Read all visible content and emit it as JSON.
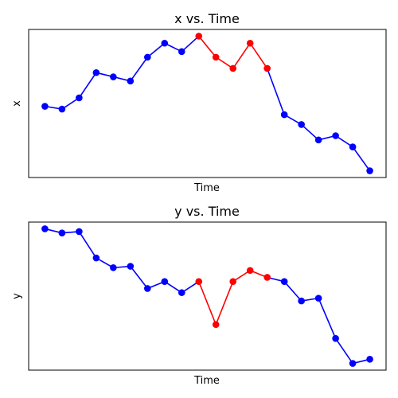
{
  "chart_data": [
    {
      "type": "line",
      "title": "x vs. Time",
      "xlabel": "Time",
      "ylabel": "x",
      "x_ticks_visible": false,
      "y_ticks_visible": false,
      "grid": false,
      "x": [
        0,
        1,
        2,
        3,
        4,
        5,
        6,
        7,
        8,
        9,
        10,
        11,
        12,
        13,
        14,
        15,
        16,
        17,
        18,
        19
      ],
      "values": [
        0.5,
        0.48,
        0.56,
        0.74,
        0.71,
        0.68,
        0.85,
        0.95,
        0.89,
        1.0,
        0.85,
        0.77,
        0.95,
        0.77,
        0.44,
        0.37,
        0.26,
        0.29,
        0.21,
        0.04
      ],
      "highlight_indices": [
        9,
        10,
        11,
        12,
        13
      ],
      "line_color": "#0000ff",
      "point_color": "#0000ff",
      "highlight_color": "#ff0000"
    },
    {
      "type": "line",
      "title": "y vs. Time",
      "xlabel": "Time",
      "ylabel": "y",
      "x_ticks_visible": false,
      "y_ticks_visible": false,
      "grid": false,
      "x": [
        0,
        1,
        2,
        3,
        4,
        5,
        6,
        7,
        8,
        9,
        10,
        11,
        12,
        13,
        14,
        15,
        16,
        17,
        18,
        19
      ],
      "values": [
        1.0,
        0.97,
        0.98,
        0.79,
        0.72,
        0.73,
        0.57,
        0.62,
        0.54,
        0.62,
        0.31,
        0.62,
        0.7,
        0.65,
        0.62,
        0.48,
        0.5,
        0.21,
        0.03,
        0.06
      ],
      "highlight_indices": [
        9,
        10,
        11,
        12,
        13
      ],
      "line_color": "#0000ff",
      "point_color": "#0000ff",
      "highlight_color": "#ff0000"
    }
  ]
}
